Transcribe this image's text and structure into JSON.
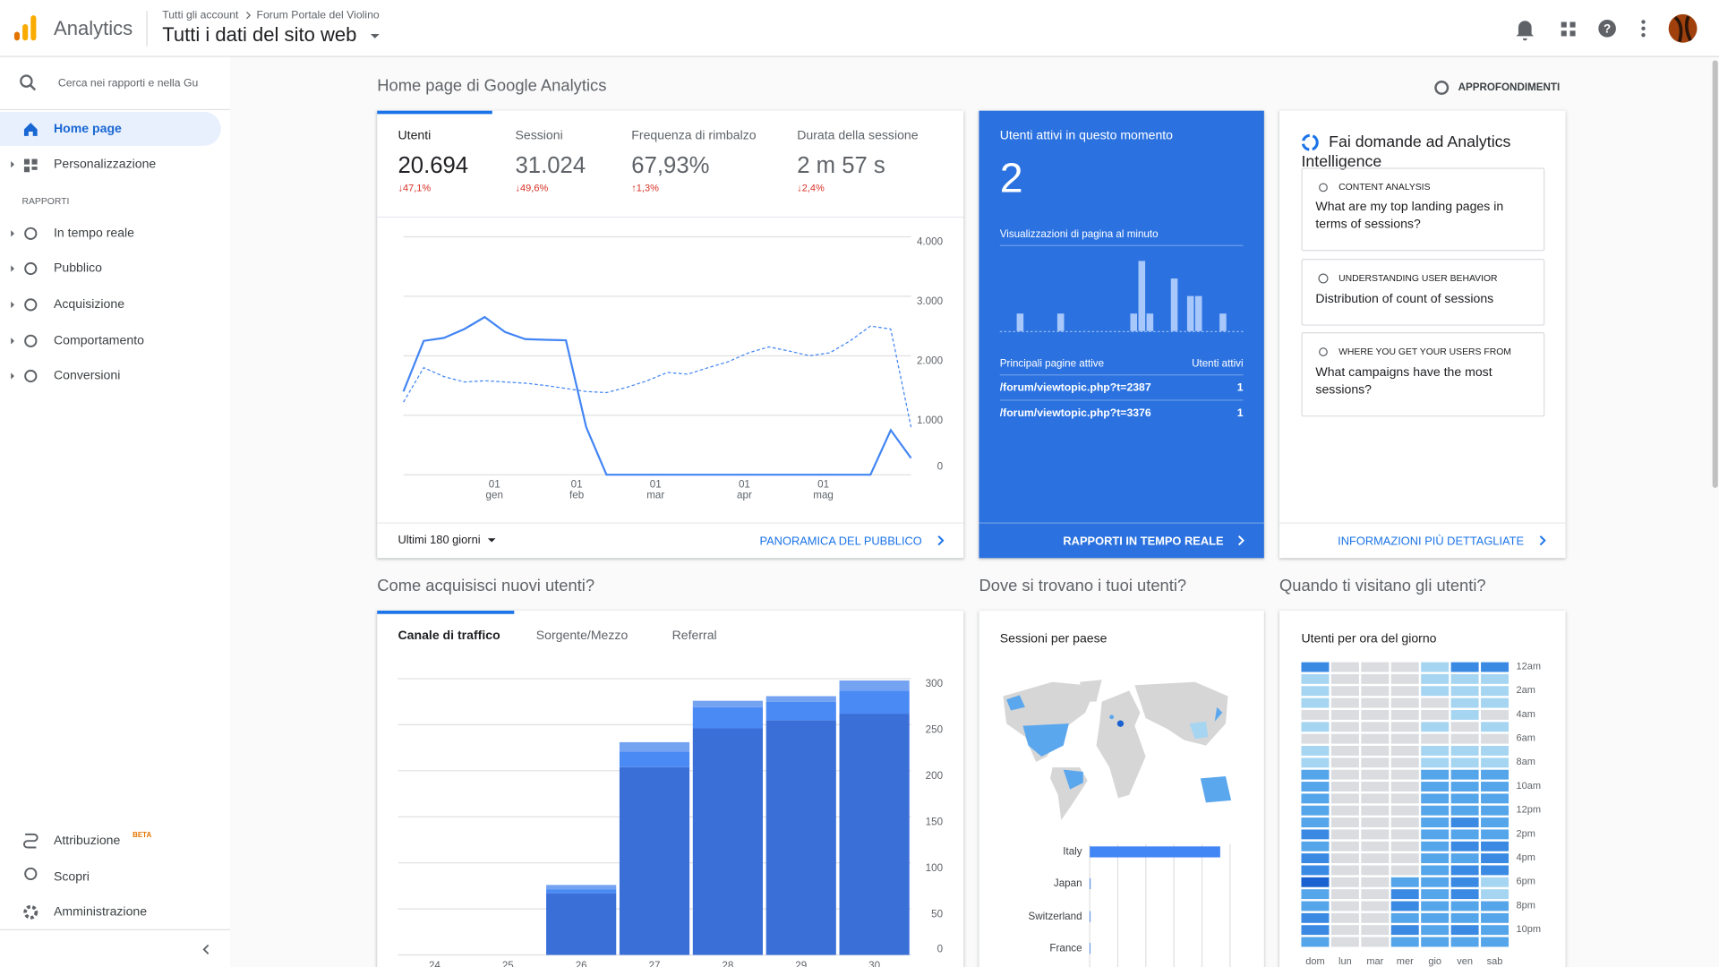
{
  "header": {
    "product": "Analytics",
    "breadcrumb": [
      "Tutti gli account",
      "Forum Portale del Violino"
    ],
    "view": "Tutti i dati del sito web"
  },
  "sidebar": {
    "search_placeholder": "Cerca nei rapporti e nella Gu",
    "top": [
      "Home page",
      "Personalizzazione"
    ],
    "section": "RAPPORTI",
    "reports": [
      "In tempo reale",
      "Pubblico",
      "Acquisizione",
      "Comportamento",
      "Conversioni"
    ],
    "bottom": [
      {
        "label": "Attribuzione",
        "badge": "BETA"
      },
      {
        "label": "Scopri"
      },
      {
        "label": "Amministrazione"
      }
    ]
  },
  "page": {
    "title": "Home page di Google Analytics",
    "insights": "APPROFONDIMENTI"
  },
  "audience": {
    "metrics": [
      {
        "label": "Utenti",
        "value": "20.694",
        "change": "↓47,1%"
      },
      {
        "label": "Sessioni",
        "value": "31.024",
        "change": "↓49,6%"
      },
      {
        "label": "Frequenza di rimbalzo",
        "value": "67,93%",
        "change": "↑1,3%"
      },
      {
        "label": "Durata della sessione",
        "value": "2 m 57 s",
        "change": "↓2,4%"
      }
    ],
    "chart_data": {
      "type": "line",
      "xticks": [
        [
          "01",
          "gen"
        ],
        [
          "01",
          "feb"
        ],
        [
          "01",
          "mar"
        ],
        [
          "01",
          "apr"
        ],
        [
          "01",
          "mag"
        ]
      ],
      "ylim": [
        0,
        4000
      ],
      "yticks": [
        0,
        {
          "value": 1000,
          "label": "1.000"
        },
        {
          "value": 2000,
          "label": "2.000"
        },
        {
          "value": 3000,
          "label": "3.000"
        },
        {
          "value": 4000,
          "label": "4.000"
        }
      ],
      "grid": true,
      "series": [
        {
          "color": "#4285f4",
          "values": [
            1400,
            2250,
            2300,
            2450,
            2650,
            2400,
            2280,
            2270,
            2260,
            800,
            0,
            0,
            0,
            0,
            0,
            0,
            0,
            0,
            0,
            0,
            0,
            0,
            0,
            0,
            750,
            280
          ]
        },
        {
          "color": "#4285f4",
          "dashed": true,
          "values": [
            1220,
            1800,
            1650,
            1560,
            1580,
            1560,
            1540,
            1500,
            1450,
            1400,
            1380,
            1470,
            1580,
            1720,
            1690,
            1800,
            1900,
            2050,
            2150,
            2080,
            2000,
            2050,
            2250,
            2500,
            2450,
            800
          ]
        }
      ]
    },
    "date_range": "Ultimi 180 giorni",
    "link": "PANORAMICA DEL PUBBLICO"
  },
  "realtime": {
    "title": "Utenti attivi in questo momento",
    "active_users": 2,
    "chart_data": {
      "type": "bar",
      "title": "Visualizzazioni di pagina al minuto",
      "color": "#a8c7fa",
      "values": [
        0,
        0,
        2,
        0,
        0,
        0,
        0,
        2,
        0,
        0,
        0,
        0,
        0,
        0,
        0,
        0,
        2,
        8,
        2,
        0,
        0,
        6,
        0,
        4,
        4,
        0,
        0,
        2,
        0,
        0
      ]
    },
    "table": {
      "header": [
        "Principali pagine attive",
        "Utenti attivi"
      ],
      "rows": [
        [
          "/forum/viewtopic.php?t=2387",
          1
        ],
        [
          "/forum/viewtopic.php?t=3376",
          1
        ]
      ]
    },
    "link": "RAPPORTI IN TEMPO REALE"
  },
  "intelligence": {
    "title": "Fai domande ad Analytics Intelligence",
    "questions": [
      {
        "category": "CONTENT ANALYSIS",
        "text": "What are my top landing pages in terms of sessions?"
      },
      {
        "category": "UNDERSTANDING USER BEHAVIOR",
        "text": "Distribution of count of sessions"
      },
      {
        "category": "WHERE YOU GET YOUR USERS FROM",
        "text": "What campaigns have the most sessions?"
      }
    ],
    "link": "INFORMAZIONI PIÙ DETTAGLIATE"
  },
  "acquisition": {
    "title": "Come acquisisci nuovi utenti?",
    "tabs": [
      "Canale di traffico",
      "Sorgente/Mezzo",
      "Referral"
    ],
    "chart_data": {
      "type": "bar",
      "stacked": true,
      "categories": [
        "24",
        "25",
        "26",
        "27",
        "28",
        "29",
        "30"
      ],
      "ylim": [
        0,
        300
      ],
      "yticks": [
        0,
        50,
        100,
        150,
        200,
        250,
        300
      ],
      "grid": true,
      "series": [
        {
          "color": "#3b6fd8",
          "values": [
            0,
            0,
            67,
            204,
            246,
            255,
            262
          ]
        },
        {
          "color": "#4a8af4",
          "values": [
            0,
            0,
            4,
            17,
            23,
            20,
            25
          ]
        },
        {
          "color": "#74a3f2",
          "values": [
            0,
            0,
            5,
            10,
            7,
            6,
            11
          ]
        }
      ]
    }
  },
  "geo": {
    "title": "Dove si trovano i tuoi utenti?",
    "chart_data": {
      "type": "bar",
      "orientation": "horizontal",
      "title": "Sessioni per paese",
      "color": "#4285f4",
      "categories": [
        "Italy",
        "Japan",
        "Switzerland",
        "France"
      ],
      "values": [
        29500,
        200,
        180,
        170
      ]
    }
  },
  "time": {
    "title": "Quando ti visitano gli utenti?",
    "chart_data": {
      "type": "heatmap",
      "title": "Utenti per ora del giorno",
      "x": [
        "dom",
        "lun",
        "mar",
        "mer",
        "gio",
        "ven",
        "sab"
      ],
      "y": [
        "12am",
        null,
        "2am",
        null,
        "4am",
        null,
        "6am",
        null,
        "8am",
        null,
        "10am",
        null,
        "12pm",
        null,
        "2pm",
        null,
        "4pm",
        null,
        "6pm",
        null,
        "8pm",
        null,
        "10pm",
        null
      ],
      "colors": [
        "#dadce0",
        "#a6d5f2",
        "#55a5ea",
        "#3a8ae4",
        "#1a62cf"
      ],
      "values": [
        [
          3,
          0,
          0,
          0,
          1,
          3,
          3
        ],
        [
          1,
          0,
          0,
          0,
          1,
          1,
          1
        ],
        [
          1,
          0,
          0,
          0,
          1,
          1,
          1
        ],
        [
          1,
          0,
          0,
          0,
          0,
          1,
          1
        ],
        [
          0,
          0,
          0,
          0,
          0,
          1,
          0
        ],
        [
          1,
          0,
          0,
          0,
          1,
          0,
          1
        ],
        [
          0,
          0,
          0,
          0,
          0,
          0,
          0
        ],
        [
          1,
          0,
          0,
          0,
          1,
          1,
          1
        ],
        [
          1,
          0,
          0,
          0,
          1,
          1,
          1
        ],
        [
          2,
          0,
          0,
          0,
          2,
          2,
          2
        ],
        [
          2,
          0,
          0,
          0,
          2,
          2,
          2
        ],
        [
          2,
          0,
          0,
          0,
          2,
          2,
          2
        ],
        [
          2,
          0,
          0,
          0,
          2,
          2,
          2
        ],
        [
          2,
          0,
          0,
          0,
          2,
          3,
          2
        ],
        [
          3,
          0,
          0,
          0,
          2,
          2,
          2
        ],
        [
          2,
          0,
          0,
          0,
          2,
          3,
          3
        ],
        [
          3,
          0,
          0,
          0,
          2,
          2,
          3
        ],
        [
          3,
          0,
          0,
          0,
          2,
          3,
          3
        ],
        [
          4,
          0,
          0,
          2,
          2,
          3,
          1
        ],
        [
          2,
          0,
          0,
          3,
          2,
          3,
          1
        ],
        [
          2,
          0,
          0,
          3,
          2,
          2,
          2
        ],
        [
          3,
          0,
          0,
          2,
          2,
          2,
          2
        ],
        [
          3,
          0,
          0,
          3,
          2,
          3,
          2
        ],
        [
          2,
          0,
          0,
          2,
          2,
          2,
          2
        ]
      ]
    }
  }
}
